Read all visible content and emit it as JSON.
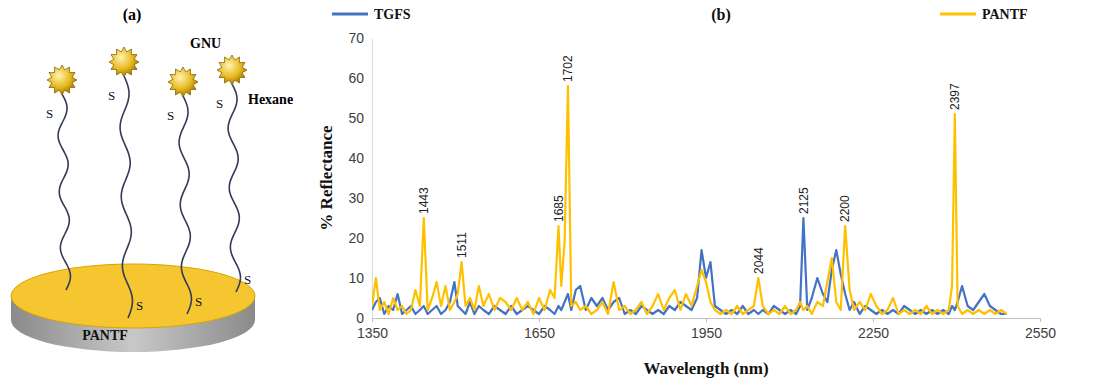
{
  "diagram": {
    "panel_label": "(a)",
    "particle_label": "GNU",
    "chain_label": "Hexane",
    "substrate_label": "PANTF",
    "sulfur_label": "S"
  },
  "chart_data": {
    "type": "line",
    "title": "(b)",
    "x_label": "Wavelength (nm)",
    "y_label": "% Reflectance",
    "x": [
      1350,
      1357,
      1364,
      1372,
      1380,
      1388,
      1396,
      1404,
      1412,
      1420,
      1428,
      1436,
      1443,
      1450,
      1458,
      1466,
      1474,
      1482,
      1490,
      1498,
      1504,
      1511,
      1518,
      1526,
      1534,
      1542,
      1550,
      1560,
      1570,
      1580,
      1590,
      1600,
      1610,
      1620,
      1630,
      1640,
      1650,
      1660,
      1670,
      1678,
      1685,
      1690,
      1696,
      1702,
      1708,
      1716,
      1724,
      1734,
      1744,
      1754,
      1764,
      1774,
      1784,
      1794,
      1804,
      1814,
      1824,
      1834,
      1844,
      1854,
      1864,
      1874,
      1884,
      1894,
      1904,
      1914,
      1924,
      1934,
      1942,
      1950,
      1958,
      1966,
      1976,
      1986,
      1996,
      2006,
      2016,
      2026,
      2036,
      2044,
      2052,
      2062,
      2072,
      2082,
      2092,
      2102,
      2112,
      2119,
      2125,
      2132,
      2140,
      2150,
      2160,
      2168,
      2176,
      2184,
      2192,
      2200,
      2208,
      2216,
      2226,
      2236,
      2246,
      2256,
      2266,
      2276,
      2286,
      2296,
      2306,
      2316,
      2326,
      2336,
      2346,
      2356,
      2366,
      2376,
      2386,
      2392,
      2397,
      2402,
      2410,
      2420,
      2430,
      2440,
      2450,
      2460,
      2470,
      2480,
      2490
    ],
    "series": [
      {
        "name": "TGFS",
        "color": "#4472c4",
        "values": [
          2,
          4,
          5,
          1,
          3,
          2,
          6,
          1,
          2,
          3,
          1,
          2,
          3,
          1,
          2,
          3,
          1,
          2,
          4,
          9,
          3,
          2,
          1,
          4,
          1,
          3,
          2,
          1,
          3,
          2,
          1,
          3,
          1,
          2,
          3,
          2,
          1,
          3,
          2,
          1,
          3,
          2,
          4,
          6,
          2,
          7,
          8,
          2,
          5,
          3,
          5,
          2,
          4,
          5,
          1,
          2,
          1,
          3,
          2,
          1,
          2,
          1,
          3,
          2,
          4,
          3,
          2,
          5,
          17,
          10,
          14,
          3,
          2,
          1,
          2,
          1,
          3,
          1,
          2,
          1,
          2,
          1,
          3,
          2,
          1,
          2,
          1,
          3,
          25,
          2,
          5,
          10,
          6,
          4,
          12,
          17,
          11,
          6,
          2,
          4,
          1,
          3,
          2,
          1,
          2,
          1,
          2,
          1,
          3,
          2,
          1,
          2,
          1,
          2,
          1,
          2,
          1,
          3,
          2,
          4,
          8,
          3,
          2,
          4,
          6,
          3,
          2,
          1,
          1
        ]
      },
      {
        "name": "PANTF",
        "color": "#ffc000",
        "values": [
          3,
          10,
          2,
          4,
          1,
          5,
          2,
          3,
          1,
          2,
          7,
          3,
          25,
          2,
          5,
          9,
          3,
          8,
          2,
          4,
          6,
          14,
          3,
          5,
          2,
          8,
          3,
          6,
          2,
          5,
          4,
          2,
          5,
          2,
          4,
          1,
          5,
          2,
          7,
          5,
          23,
          8,
          19,
          58,
          3,
          4,
          2,
          3,
          1,
          2,
          4,
          1,
          9,
          2,
          3,
          1,
          2,
          4,
          1,
          3,
          6,
          2,
          5,
          7,
          2,
          6,
          3,
          8,
          12,
          9,
          4,
          2,
          1,
          2,
          1,
          3,
          1,
          2,
          3,
          10,
          3,
          1,
          2,
          1,
          3,
          1,
          2,
          4,
          2,
          3,
          1,
          4,
          3,
          9,
          15,
          4,
          2,
          23,
          7,
          2,
          4,
          2,
          6,
          3,
          1,
          2,
          5,
          1,
          2,
          1,
          2,
          1,
          3,
          1,
          2,
          1,
          2,
          8,
          51,
          3,
          1,
          2,
          1,
          2,
          1,
          2,
          1,
          2,
          1
        ]
      }
    ],
    "annotations": [
      {
        "x": 1443,
        "y": 25,
        "text": "1443"
      },
      {
        "x": 1511,
        "y": 14,
        "text": "1511"
      },
      {
        "x": 1685,
        "y": 23,
        "text": "1685"
      },
      {
        "x": 1702,
        "y": 58,
        "text": "1702"
      },
      {
        "x": 2044,
        "y": 10,
        "text": "2044"
      },
      {
        "x": 2125,
        "y": 25,
        "text": "2125"
      },
      {
        "x": 2200,
        "y": 23,
        "text": "2200"
      },
      {
        "x": 2397,
        "y": 51,
        "text": "2397"
      }
    ],
    "xlim": [
      1350,
      2550
    ],
    "xticks": [
      1350,
      1650,
      1950,
      2250,
      2550
    ],
    "ylim": [
      0,
      70
    ],
    "yticks": [
      0,
      10,
      20,
      30,
      40,
      50,
      60,
      70
    ],
    "grid": false,
    "legend": "top"
  }
}
